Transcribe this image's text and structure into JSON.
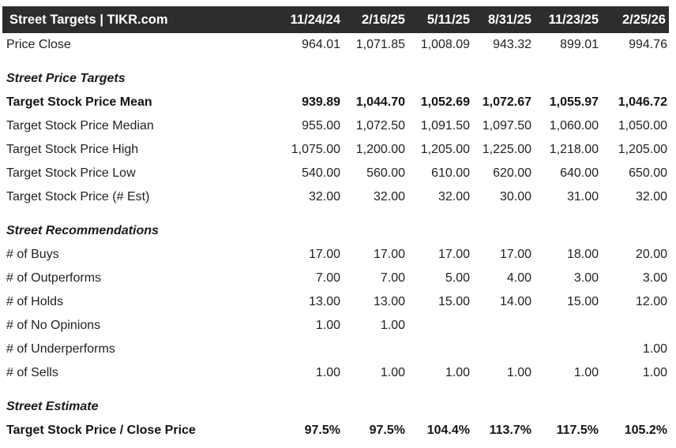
{
  "table": {
    "title": "Street Targets | TIKR.com",
    "dates": [
      "11/24/24",
      "2/16/25",
      "5/11/25",
      "8/31/25",
      "11/23/25",
      "2/25/26"
    ],
    "rows": [
      {
        "type": "data",
        "label": "Price Close",
        "values": [
          "964.01",
          "1,071.85",
          "1,008.09",
          "943.32",
          "899.01",
          "994.76"
        ]
      },
      {
        "type": "section",
        "label": "Street Price Targets"
      },
      {
        "type": "data",
        "bold": true,
        "label": "Target Stock Price Mean",
        "values": [
          "939.89",
          "1,044.70",
          "1,052.69",
          "1,072.67",
          "1,055.97",
          "1,046.72"
        ]
      },
      {
        "type": "data",
        "label": "Target Stock Price Median",
        "values": [
          "955.00",
          "1,072.50",
          "1,091.50",
          "1,097.50",
          "1,060.00",
          "1,050.00"
        ]
      },
      {
        "type": "data",
        "label": "Target Stock Price High",
        "values": [
          "1,075.00",
          "1,200.00",
          "1,205.00",
          "1,225.00",
          "1,218.00",
          "1,205.00"
        ]
      },
      {
        "type": "data",
        "label": "Target Stock Price Low",
        "values": [
          "540.00",
          "560.00",
          "610.00",
          "620.00",
          "640.00",
          "650.00"
        ]
      },
      {
        "type": "data",
        "label": "Target Stock Price (# Est)",
        "values": [
          "32.00",
          "32.00",
          "32.00",
          "30.00",
          "31.00",
          "32.00"
        ]
      },
      {
        "type": "section",
        "label": "Street Recommendations"
      },
      {
        "type": "data",
        "label": "# of Buys",
        "values": [
          "17.00",
          "17.00",
          "17.00",
          "17.00",
          "18.00",
          "20.00"
        ]
      },
      {
        "type": "data",
        "label": "# of Outperforms",
        "values": [
          "7.00",
          "7.00",
          "5.00",
          "4.00",
          "3.00",
          "3.00"
        ]
      },
      {
        "type": "data",
        "label": "# of Holds",
        "values": [
          "13.00",
          "13.00",
          "15.00",
          "14.00",
          "15.00",
          "12.00"
        ]
      },
      {
        "type": "data",
        "label": "# of No Opinions",
        "values": [
          "1.00",
          "1.00",
          "",
          "",
          "",
          ""
        ]
      },
      {
        "type": "data",
        "label": "# of Underperforms",
        "values": [
          "",
          "",
          "",
          "",
          "",
          "1.00"
        ]
      },
      {
        "type": "data",
        "label": "# of Sells",
        "values": [
          "1.00",
          "1.00",
          "1.00",
          "1.00",
          "1.00",
          "1.00"
        ]
      },
      {
        "type": "section",
        "label": "Street Estimate"
      },
      {
        "type": "data",
        "bold": true,
        "label": "Target Stock Price / Close Price",
        "values": [
          "97.5%",
          "97.5%",
          "104.4%",
          "113.7%",
          "117.5%",
          "105.2%"
        ]
      }
    ],
    "colors": {
      "header_bg": "#2d2d2d",
      "header_text": "#ffffff",
      "body_text": "#222222"
    }
  }
}
